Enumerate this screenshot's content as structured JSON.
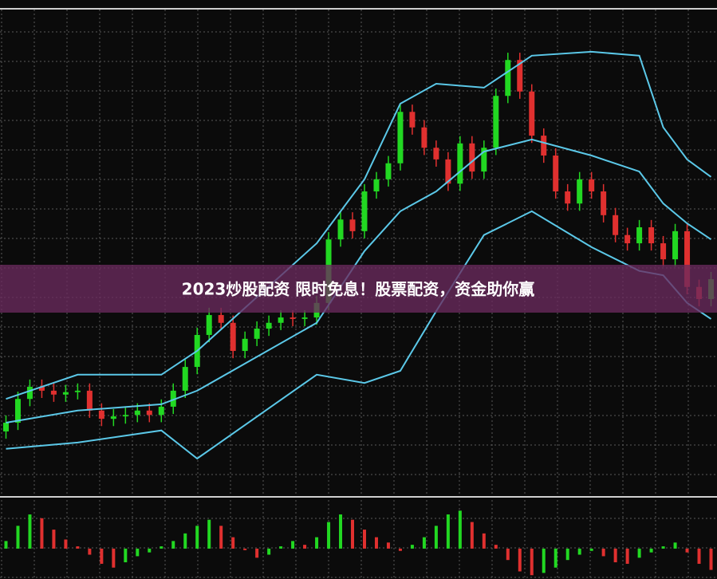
{
  "banner": {
    "text": "2023炒股配资 限时免息！股票配资，资金助你赢"
  },
  "chart_data": {
    "type": "candlestick",
    "ylim": [
      0,
      100
    ],
    "up_color": "#22d822",
    "down_color": "#e0302f",
    "open": [
      13,
      14.8,
      19.7,
      22.2,
      21.4,
      20.6,
      21.1,
      21.4,
      17.3,
      15.6,
      16.1,
      16.4,
      17.3,
      16.4,
      18.1,
      21.4,
      26.3,
      32.9,
      37.0,
      35.4,
      29.6,
      32.1,
      34.2,
      35.4,
      36.5,
      36.2,
      36.5,
      39.5,
      52.6,
      56.7,
      54.3,
      62.5,
      65.0,
      68.3,
      78.9,
      75.7,
      71.5,
      69.1,
      64.1,
      72.4,
      66.6,
      71.5,
      82.2,
      89.6,
      83.1,
      74.0,
      69.9,
      62.5,
      60.0,
      65.0,
      62.5,
      57.6,
      53.5,
      51.8,
      55.1,
      51.8,
      48.5,
      54.3,
      42.8,
      40.3
    ],
    "high": [
      16.3,
      21.2,
      23.7,
      23.7,
      22.9,
      22.6,
      22.9,
      22.9,
      18.8,
      17.6,
      17.9,
      18.8,
      18.8,
      19.6,
      22.9,
      27.8,
      34.4,
      38.5,
      38.5,
      36.9,
      33.6,
      35.7,
      36.9,
      38.0,
      38.0,
      38.0,
      41.0,
      54.1,
      58.2,
      58.2,
      64.0,
      66.5,
      69.8,
      80.4,
      80.4,
      77.2,
      73.0,
      70.6,
      73.9,
      73.9,
      73.0,
      83.7,
      91.1,
      91.1,
      84.6,
      75.5,
      71.4,
      64.0,
      66.5,
      66.5,
      64.0,
      59.1,
      55.0,
      56.6,
      56.6,
      53.3,
      55.8,
      55.8,
      44.3,
      45.9
    ],
    "low": [
      11.5,
      13.3,
      18.2,
      19.9,
      19.1,
      19.1,
      19.6,
      15.8,
      14.1,
      14.1,
      14.6,
      14.9,
      14.9,
      14.9,
      16.6,
      19.9,
      24.8,
      31.4,
      33.9,
      28.1,
      28.1,
      30.6,
      32.7,
      33.9,
      34.7,
      34.7,
      35.0,
      38.0,
      51.1,
      52.8,
      52.8,
      61.0,
      63.5,
      66.8,
      74.2,
      70.0,
      67.6,
      62.6,
      62.6,
      65.1,
      65.1,
      70.0,
      80.7,
      81.6,
      72.5,
      68.4,
      61.0,
      58.5,
      58.5,
      61.0,
      56.1,
      52.0,
      50.3,
      50.3,
      50.3,
      47.0,
      47.0,
      41.3,
      38.8,
      38.8
    ],
    "close": [
      14.8,
      19.7,
      22.2,
      21.4,
      20.6,
      21.1,
      21.4,
      17.3,
      15.6,
      16.1,
      16.4,
      17.3,
      16.4,
      18.1,
      21.4,
      26.3,
      32.9,
      37.0,
      35.4,
      29.6,
      32.1,
      34.2,
      35.4,
      36.5,
      36.2,
      36.5,
      39.5,
      52.6,
      56.7,
      54.3,
      62.5,
      65.0,
      68.3,
      78.9,
      75.7,
      71.5,
      69.1,
      64.1,
      72.4,
      66.6,
      71.5,
      82.2,
      89.6,
      83.1,
      74.0,
      69.9,
      62.5,
      60.0,
      65.0,
      62.5,
      57.6,
      53.5,
      51.8,
      55.1,
      51.8,
      48.5,
      54.3,
      42.8,
      40.3,
      44.4
    ],
    "bands": [
      {
        "color": "#5bc8e8",
        "x": [
          0,
          6,
          13,
          16,
          26,
          30,
          33,
          36,
          40,
          44,
          49,
          53,
          55,
          57,
          59
        ],
        "values": [
          19.7,
          24.7,
          24.7,
          29.6,
          51.8,
          65.0,
          80.6,
          84.7,
          83.9,
          90.5,
          91.3,
          90.5,
          75.7,
          69.1,
          65.5
        ]
      },
      {
        "color": "#5bc8e8",
        "x": [
          0,
          6,
          13,
          16,
          26,
          30,
          33,
          36,
          40,
          44,
          49,
          53,
          55,
          57,
          59
        ],
        "values": [
          14.8,
          17.3,
          18.6,
          21.4,
          35.4,
          50.2,
          58.4,
          62.5,
          70.7,
          73.2,
          69.9,
          66.6,
          60.0,
          55.9,
          52.6
        ]
      },
      {
        "color": "#5bc8e8",
        "x": [
          0,
          6,
          13,
          16,
          26,
          30,
          33,
          36,
          40,
          44,
          49,
          53,
          55,
          57,
          59
        ],
        "values": [
          9.4,
          10.7,
          13.2,
          7.4,
          24.7,
          23.0,
          25.5,
          37.8,
          53.5,
          58.4,
          51.0,
          46.1,
          45.2,
          39.5,
          36.2
        ]
      }
    ],
    "histogram": {
      "ylim": [
        -40,
        65
      ],
      "values": [
        10,
        30,
        45,
        40,
        25,
        12,
        3,
        -8,
        -20,
        -25,
        -18,
        -10,
        -5,
        3,
        10,
        20,
        30,
        38,
        30,
        15,
        -2,
        -12,
        -8,
        3,
        10,
        5,
        15,
        35,
        45,
        38,
        25,
        15,
        8,
        -3,
        5,
        15,
        30,
        45,
        50,
        35,
        20,
        5,
        -15,
        -30,
        -35,
        -32,
        -25,
        -15,
        -8,
        -3,
        -10,
        -18,
        -20,
        -12,
        -5,
        3,
        8,
        -5,
        -20,
        -28
      ]
    }
  }
}
